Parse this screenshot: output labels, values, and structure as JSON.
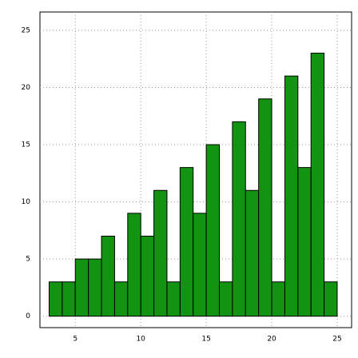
{
  "chart_data": {
    "type": "histogram",
    "bins": [
      3,
      4,
      5,
      6,
      7,
      8,
      9,
      10,
      11,
      12,
      13,
      14,
      15,
      16,
      17,
      18,
      19,
      20,
      21,
      22,
      23,
      24,
      25
    ],
    "values": [
      3,
      3,
      5,
      5,
      7,
      3,
      9,
      7,
      11,
      3,
      13,
      9,
      15,
      3,
      17,
      11,
      19,
      3,
      21,
      13,
      23,
      3
    ],
    "color": "#129412",
    "xlim": [
      2.3,
      26.1
    ],
    "ylim": [
      -1,
      26.6
    ],
    "xticks": [
      5,
      10,
      15,
      20,
      25
    ],
    "yticks": [
      0,
      5,
      10,
      15,
      20,
      25
    ],
    "grid": true
  }
}
